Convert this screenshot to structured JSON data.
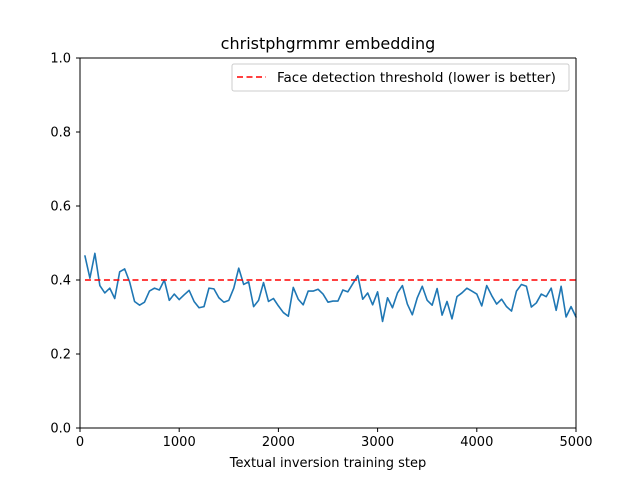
{
  "chart_data": {
    "type": "line",
    "title": "christphgrmmr embedding",
    "xlabel": "Textual inversion training step",
    "ylabel": "",
    "xlim": [
      0,
      5000
    ],
    "ylim": [
      0,
      1
    ],
    "x_ticks": [
      0,
      1000,
      2000,
      3000,
      4000,
      5000
    ],
    "y_ticks": [
      "0.0",
      "0.2",
      "0.4",
      "0.6",
      "0.8",
      "1.0"
    ],
    "grid": false,
    "legend_position": "top-right",
    "series": [
      {
        "type": "line",
        "color": "#1f77b4",
        "x": [
          50,
          100,
          150,
          200,
          250,
          300,
          350,
          400,
          450,
          500,
          550,
          600,
          650,
          700,
          750,
          800,
          850,
          900,
          950,
          1000,
          1050,
          1100,
          1150,
          1200,
          1250,
          1300,
          1350,
          1400,
          1450,
          1500,
          1550,
          1600,
          1650,
          1700,
          1750,
          1800,
          1850,
          1900,
          1950,
          2000,
          2050,
          2100,
          2150,
          2200,
          2250,
          2300,
          2350,
          2400,
          2450,
          2500,
          2550,
          2600,
          2650,
          2700,
          2750,
          2800,
          2850,
          2900,
          2950,
          3000,
          3050,
          3100,
          3150,
          3200,
          3250,
          3300,
          3350,
          3400,
          3450,
          3500,
          3550,
          3600,
          3650,
          3700,
          3750,
          3800,
          3850,
          3900,
          3950,
          4000,
          4050,
          4100,
          4150,
          4200,
          4250,
          4300,
          4350,
          4400,
          4450,
          4500,
          4550,
          4600,
          4650,
          4700,
          4750,
          4800,
          4850,
          4900,
          4950,
          5000
        ],
        "values": [
          0.465,
          0.405,
          0.472,
          0.385,
          0.365,
          0.378,
          0.35,
          0.422,
          0.43,
          0.395,
          0.342,
          0.332,
          0.34,
          0.37,
          0.378,
          0.373,
          0.4,
          0.345,
          0.362,
          0.347,
          0.36,
          0.372,
          0.342,
          0.325,
          0.328,
          0.378,
          0.376,
          0.352,
          0.34,
          0.345,
          0.378,
          0.432,
          0.388,
          0.395,
          0.328,
          0.345,
          0.393,
          0.342,
          0.35,
          0.33,
          0.312,
          0.302,
          0.38,
          0.348,
          0.333,
          0.37,
          0.37,
          0.375,
          0.362,
          0.34,
          0.343,
          0.343,
          0.373,
          0.368,
          0.39,
          0.412,
          0.348,
          0.365,
          0.333,
          0.368,
          0.288,
          0.352,
          0.325,
          0.365,
          0.385,
          0.335,
          0.306,
          0.352,
          0.383,
          0.345,
          0.332,
          0.377,
          0.305,
          0.342,
          0.295,
          0.355,
          0.365,
          0.378,
          0.37,
          0.362,
          0.33,
          0.385,
          0.358,
          0.335,
          0.348,
          0.328,
          0.316,
          0.37,
          0.388,
          0.383,
          0.327,
          0.338,
          0.362,
          0.355,
          0.378,
          0.318,
          0.383,
          0.3,
          0.328,
          0.3
        ]
      },
      {
        "name": "Face detection threshold (lower is better)",
        "type": "line",
        "style": "dashed",
        "color": "#ff0000",
        "x": [
          50,
          5000
        ],
        "values": [
          0.4,
          0.4
        ]
      }
    ]
  }
}
